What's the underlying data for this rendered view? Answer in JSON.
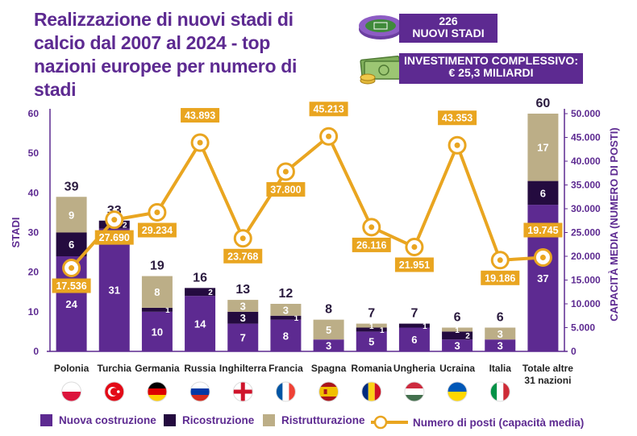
{
  "title": "Realizzazione di nuovi stadi di calcio dal 2007 al 2024 - top nazioni europee per numero di stadi",
  "badges": {
    "stadi_value": "226",
    "stadi_label": "NUOVI STADI",
    "inv_label": "INVESTIMENTO COMPLESSIVO:",
    "inv_value": "€ 25,3 MILIARDI"
  },
  "colors": {
    "nuova": "#5d2a91",
    "ricostruzione": "#240b3f",
    "ristrutturazione": "#bcae87",
    "line": "#e9a520",
    "text": "#5d2a91"
  },
  "chart_data": {
    "type": "bar",
    "stacked": true,
    "categories": [
      "Polonia",
      "Turchia",
      "Germania",
      "Russia",
      "Inghilterra",
      "Francia",
      "Spagna",
      "Romania",
      "Ungheria",
      "Ucraina",
      "Italia",
      "Totale altre 31 nazioni"
    ],
    "series": [
      {
        "name": "Nuova costruzione",
        "values": [
          24,
          31,
          10,
          14,
          7,
          8,
          3,
          5,
          6,
          3,
          3,
          37
        ]
      },
      {
        "name": "Ricostruzione",
        "values": [
          6,
          2,
          1,
          2,
          3,
          1,
          0,
          1,
          1,
          2,
          0,
          6
        ]
      },
      {
        "name": "Ristrutturazione",
        "values": [
          9,
          0,
          8,
          0,
          3,
          3,
          5,
          1,
          0,
          1,
          3,
          17
        ]
      }
    ],
    "totals": [
      39,
      33,
      19,
      16,
      13,
      12,
      8,
      7,
      7,
      6,
      6,
      60
    ],
    "line_series": {
      "name": "Numero di posti (capacità media)",
      "values": [
        17536,
        27690,
        29234,
        43893,
        23768,
        37800,
        45213,
        26116,
        21951,
        43353,
        19186,
        19745
      ],
      "labels": [
        "17.536",
        "27.690",
        "29.234",
        "43.893",
        "23.768",
        "37.800",
        "45.213",
        "26.116",
        "21.951",
        "43.353",
        "19.186",
        "19.745"
      ]
    },
    "ylabel": "STADI",
    "ylim": [
      0,
      60
    ],
    "yticks": [
      0,
      10,
      20,
      30,
      40,
      50,
      60
    ],
    "y2label": "CAPACITÀ MEDIA (NUMERO DI POSTI)",
    "y2lim": [
      0,
      50000
    ],
    "y2ticks": [
      "0",
      "5.000",
      "10.000",
      "15.000",
      "20.000",
      "25.000",
      "30.000",
      "35.000",
      "40.000",
      "45.000",
      "50.000"
    ],
    "legend": "bottom",
    "flags": [
      "poland",
      "turkey",
      "germany",
      "russia",
      "england",
      "france",
      "spain",
      "romania",
      "hungary",
      "ukraine",
      "italy"
    ]
  }
}
